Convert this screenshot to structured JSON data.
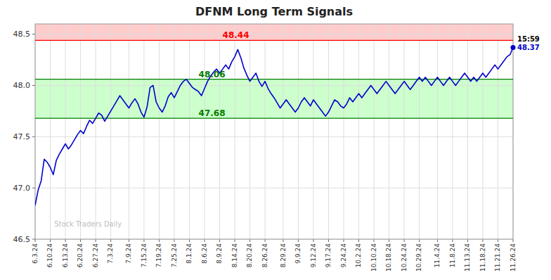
{
  "chart_data": {
    "type": "line",
    "title": "DFNM Long Term Signals",
    "categories": [
      "6.3.24",
      null,
      null,
      null,
      null,
      "6.10.24",
      null,
      null,
      null,
      null,
      "6.13.24",
      null,
      null,
      null,
      null,
      "6.20.24",
      null,
      null,
      null,
      null,
      "6.27.24",
      null,
      null,
      null,
      null,
      "7.3.24",
      null,
      null,
      null,
      null,
      null,
      "7.9.24",
      null,
      null,
      null,
      null,
      "7.15.24",
      null,
      null,
      null,
      null,
      "7.19.24",
      null,
      null,
      null,
      null,
      "7.25.24",
      null,
      null,
      null,
      null,
      "8.1.24",
      null,
      null,
      null,
      null,
      "8.6.24",
      null,
      null,
      null,
      null,
      "8.9.24",
      null,
      null,
      null,
      null,
      "8.14.24",
      null,
      null,
      null,
      null,
      "8.20.24",
      null,
      null,
      null,
      null,
      "8.26.24",
      null,
      null,
      null,
      null,
      null,
      "8.29.24",
      null,
      null,
      null,
      null,
      "9.9.24",
      null,
      null,
      null,
      null,
      "9.12.24",
      null,
      null,
      null,
      null,
      "9.17.24",
      null,
      null,
      null,
      null,
      "9.24.24",
      null,
      null,
      null,
      null,
      "10.2.24",
      null,
      null,
      null,
      null,
      "10.10.24",
      null,
      null,
      null,
      null,
      "10.18.24",
      null,
      null,
      null,
      null,
      "10.24.24",
      null,
      null,
      null,
      null,
      "10.29.24",
      null,
      null,
      null,
      null,
      null,
      "11.4.24",
      null,
      null,
      null,
      null,
      "11.8.24",
      null,
      null,
      null,
      null,
      "11.13.24",
      null,
      null,
      null,
      null,
      "11.18.24",
      null,
      null,
      null,
      null,
      "11.21.24",
      null,
      null,
      null,
      null,
      "11.26.24"
    ],
    "values": [
      46.83,
      46.98,
      47.07,
      47.28,
      47.25,
      47.2,
      47.13,
      47.27,
      47.33,
      47.38,
      47.43,
      47.38,
      47.42,
      47.47,
      47.52,
      47.56,
      47.53,
      47.6,
      47.66,
      47.63,
      47.68,
      47.73,
      47.71,
      47.65,
      47.7,
      47.75,
      47.8,
      47.85,
      47.9,
      47.86,
      47.82,
      47.78,
      47.83,
      47.87,
      47.82,
      47.74,
      47.69,
      47.79,
      47.98,
      48.0,
      47.84,
      47.78,
      47.74,
      47.8,
      47.89,
      47.93,
      47.88,
      47.94,
      48.0,
      48.04,
      48.06,
      48.02,
      47.98,
      47.96,
      47.94,
      47.9,
      47.97,
      48.04,
      48.09,
      48.13,
      48.16,
      48.12,
      48.16,
      48.2,
      48.16,
      48.23,
      48.28,
      48.35,
      48.27,
      48.17,
      48.1,
      48.04,
      48.08,
      48.12,
      48.04,
      47.99,
      48.04,
      47.97,
      47.92,
      47.88,
      47.83,
      47.78,
      47.82,
      47.86,
      47.82,
      47.78,
      47.74,
      47.78,
      47.84,
      47.88,
      47.84,
      47.8,
      47.86,
      47.82,
      47.78,
      47.74,
      47.7,
      47.74,
      47.8,
      47.86,
      47.84,
      47.8,
      47.78,
      47.82,
      47.88,
      47.84,
      47.88,
      47.92,
      47.88,
      47.92,
      47.96,
      48.0,
      47.96,
      47.92,
      47.96,
      48.0,
      48.04,
      48.0,
      47.96,
      47.92,
      47.96,
      48.0,
      48.04,
      48.0,
      47.96,
      48.0,
      48.04,
      48.08,
      48.04,
      48.08,
      48.04,
      48.0,
      48.04,
      48.08,
      48.04,
      48.0,
      48.04,
      48.08,
      48.04,
      48.0,
      48.04,
      48.08,
      48.12,
      48.08,
      48.04,
      48.08,
      48.04,
      48.08,
      48.12,
      48.08,
      48.12,
      48.16,
      48.2,
      48.16,
      48.2,
      48.24,
      48.28,
      48.3,
      48.37
    ],
    "color": "#0000cc",
    "ylim": [
      46.5,
      48.6
    ],
    "yticks": [
      46.5,
      {
        "value": 47,
        "label": "47.0"
      },
      47.5,
      {
        "value": 48,
        "label": "48.0"
      },
      48.5
    ],
    "grid": true,
    "bands": [
      {
        "from": 48.44,
        "to": 48.6,
        "color": "#ffcccc"
      },
      {
        "from": 47.68,
        "to": 48.06,
        "color": "#ccffcc"
      }
    ],
    "hlines": [
      {
        "value": 48.44,
        "label": "48.44",
        "color": "red"
      },
      {
        "value": 48.06,
        "label": "48.06",
        "color": "green"
      },
      {
        "value": 47.68,
        "label": "47.68",
        "color": "green"
      }
    ],
    "last_point": {
      "value": 48.37,
      "label": "48.37",
      "time_label": "15:59",
      "marker": "circle"
    },
    "watermark": "Stock Traders Daily"
  }
}
